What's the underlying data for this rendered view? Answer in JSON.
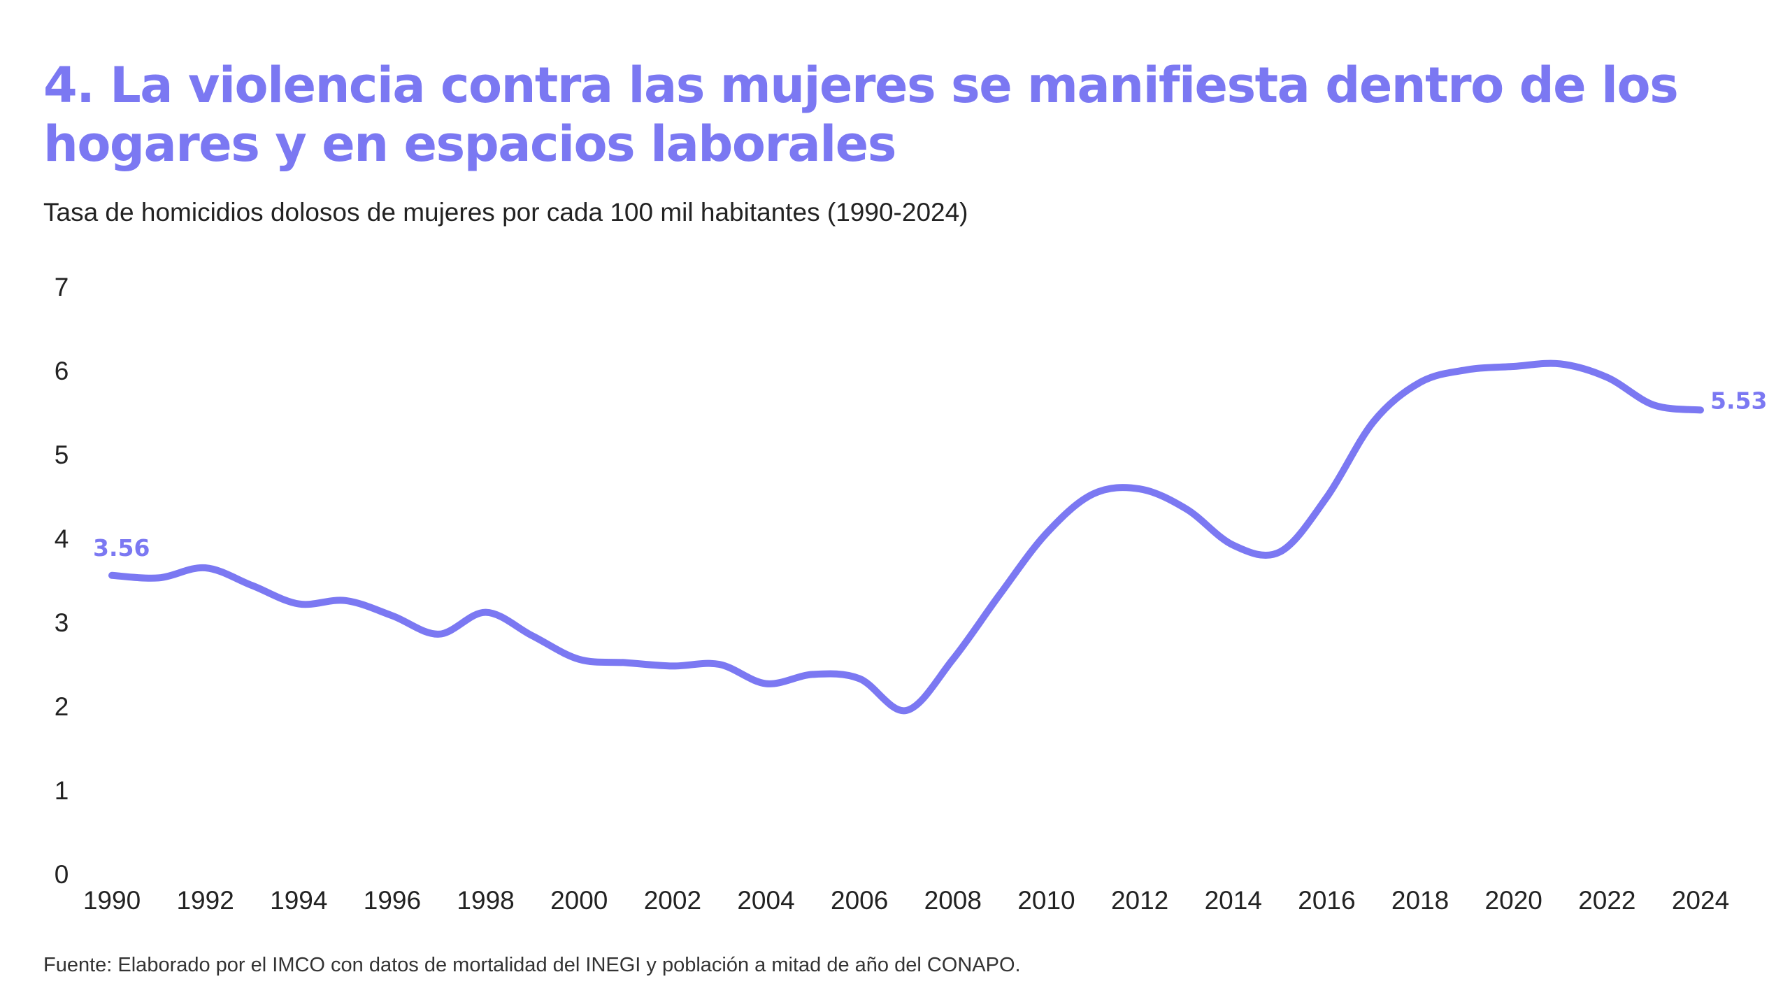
{
  "title": "4. La violencia contra las mujeres se manifiesta dentro de los hogares y en espacios laborales",
  "subtitle": "Tasa de homicidios dolosos de mujeres por cada 100 mil habitantes (1990-2024)",
  "source": "Fuente: Elaborado por el IMCO con datos de mortalidad del INEGI y población a mitad de año del CONAPO.",
  "colors": {
    "accent": "#7b78f2",
    "text": "#222222",
    "background": "#ffffff"
  },
  "chart_data": {
    "type": "line",
    "title": "4. La violencia contra las mujeres se manifiesta dentro de los hogares y en espacios laborales",
    "subtitle": "Tasa de homicidios dolosos de mujeres por cada 100 mil habitantes (1990-2024)",
    "xlabel": "",
    "ylabel": "",
    "ylim": [
      0,
      7
    ],
    "xlim": [
      1990,
      2024
    ],
    "grid": false,
    "legend": "none",
    "x_ticks": [
      "1990",
      "1992",
      "1994",
      "1996",
      "1998",
      "2000",
      "2002",
      "2004",
      "2006",
      "2008",
      "2010",
      "2012",
      "2014",
      "2016",
      "2018",
      "2020",
      "2022",
      "2024"
    ],
    "y_ticks": [
      "0",
      "1",
      "2",
      "3",
      "4",
      "5",
      "6",
      "7"
    ],
    "x": [
      1990,
      1991,
      1992,
      1993,
      1994,
      1995,
      1996,
      1997,
      1998,
      1999,
      2000,
      2001,
      2002,
      2003,
      2004,
      2005,
      2006,
      2007,
      2008,
      2009,
      2010,
      2011,
      2012,
      2013,
      2014,
      2015,
      2016,
      2017,
      2018,
      2019,
      2020,
      2021,
      2022,
      2023,
      2024
    ],
    "series": [
      {
        "values": [
          3.56,
          3.53,
          3.65,
          3.44,
          3.22,
          3.26,
          3.08,
          2.86,
          3.12,
          2.84,
          2.56,
          2.52,
          2.48,
          2.5,
          2.27,
          2.38,
          2.33,
          1.95,
          2.56,
          3.33,
          4.06,
          4.53,
          4.59,
          4.35,
          3.92,
          3.84,
          4.49,
          5.39,
          5.86,
          6.01,
          6.05,
          6.08,
          5.92,
          5.59,
          5.53
        ],
        "color": "#7b78f2"
      }
    ],
    "annotations": [
      {
        "x": 1990,
        "text": "3.56"
      },
      {
        "x": 2024,
        "text": "5.53"
      }
    ]
  }
}
